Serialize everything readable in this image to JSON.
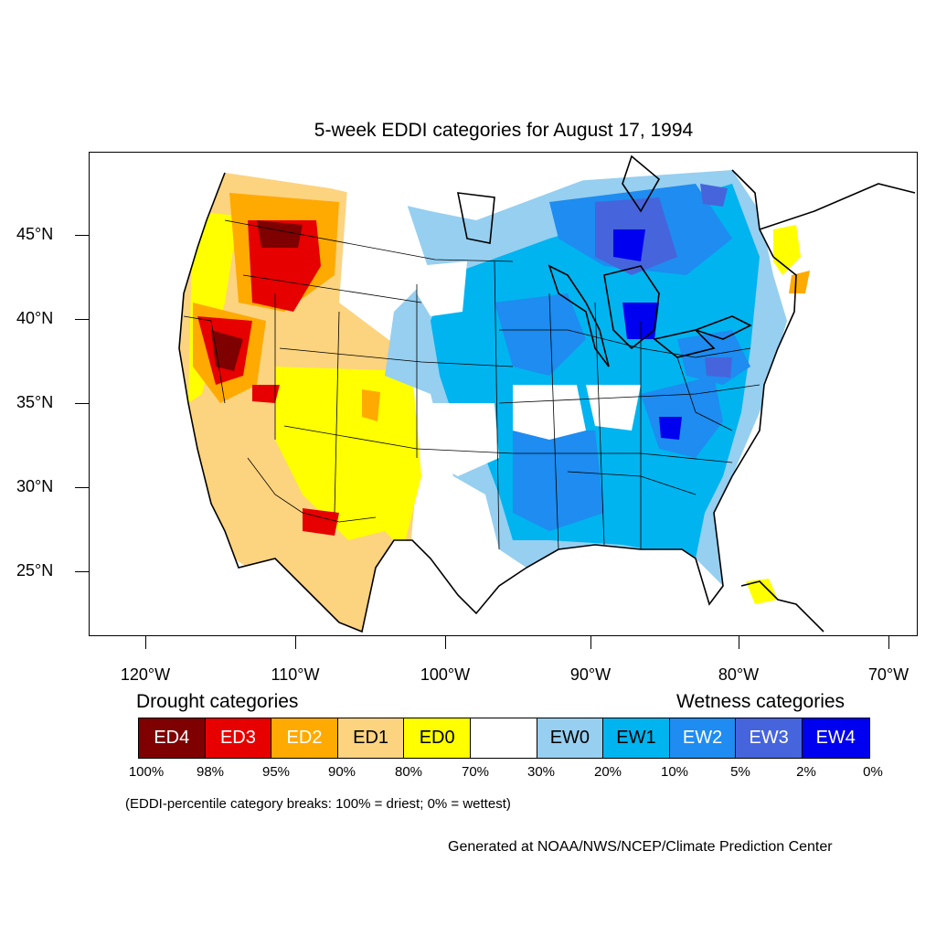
{
  "title": "5-week EDDI categories for August 17, 1994",
  "lat_labels": [
    "45°N",
    "40°N",
    "35°N",
    "30°N",
    "25°N"
  ],
  "lon_labels": [
    "120°W",
    "110°W",
    "100°W",
    "90°W",
    "80°W",
    "70°W"
  ],
  "legend": {
    "drought_heading": "Drought categories",
    "wetness_heading": "Wetness categories",
    "categories": [
      {
        "label": "ED4",
        "color": "#7f0000",
        "text_color": "#ffffff"
      },
      {
        "label": "ED3",
        "color": "#e60000",
        "text_color": "#ffffff"
      },
      {
        "label": "ED2",
        "color": "#ffaa00",
        "text_color": "#ffffff"
      },
      {
        "label": "ED1",
        "color": "#fcd37f",
        "text_color": "#000000"
      },
      {
        "label": "ED0",
        "color": "#ffff00",
        "text_color": "#000000"
      },
      {
        "label": "",
        "color": "#ffffff",
        "text_color": "#000000"
      },
      {
        "label": "EW0",
        "color": "#96cff0",
        "text_color": "#000000"
      },
      {
        "label": "EW1",
        "color": "#00b4f0",
        "text_color": "#000000"
      },
      {
        "label": "EW2",
        "color": "#1e8cf0",
        "text_color": "#ffffff"
      },
      {
        "label": "EW3",
        "color": "#4664dc",
        "text_color": "#ffffff"
      },
      {
        "label": "EW4",
        "color": "#0000f0",
        "text_color": "#ffffff"
      }
    ],
    "percent_breaks": [
      "100%",
      "98%",
      "95%",
      "90%",
      "80%",
      "70%",
      "30%",
      "20%",
      "10%",
      "5%",
      "2%",
      "0%"
    ]
  },
  "note": "(EDDI-percentile category breaks: 100% = driest; 0% = wettest)",
  "credit": "Generated at NOAA/NWS/NCEP/Climate Prediction Center"
}
